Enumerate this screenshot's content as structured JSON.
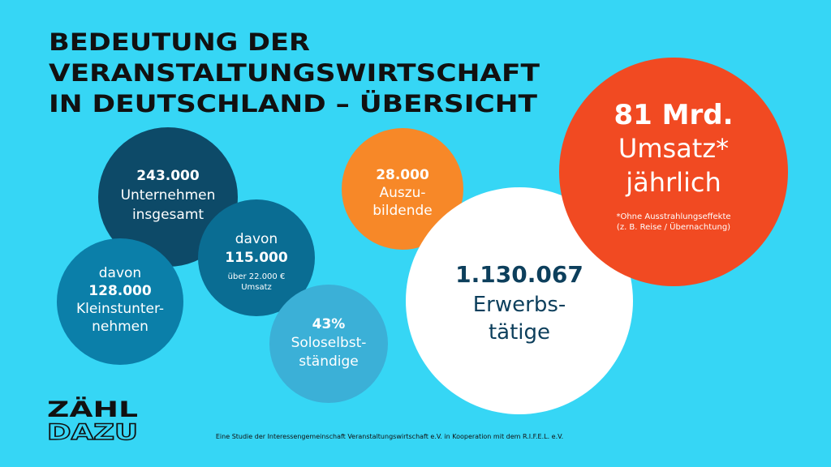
{
  "header": {
    "title": [
      "BEDEUTUNG DER",
      "VERANSTALTUNGSWIRTSCHAFT",
      "IN DEUTSCHLAND – ÜBERSICHT"
    ]
  },
  "bubbles": [
    {
      "lines": [
        "243.000",
        "Unternehmen",
        "insgesamt"
      ]
    },
    {
      "lines": [
        "davon",
        "128.000",
        "Kleinstunter-",
        "nehmen"
      ]
    },
    {
      "lines": [
        "davon",
        "115.000",
        "über 22.000 €",
        "Umsatz"
      ]
    },
    {
      "lines": [
        "43%",
        "Soloselbst-",
        "ständige"
      ]
    },
    {
      "lines": [
        "28.000",
        "Auszu-",
        "bildende"
      ]
    },
    {
      "lines": [
        "1.130.067",
        "Erwerbs-",
        "tätige"
      ]
    },
    {
      "lines": [
        "81 Mrd.",
        "Umsatz*",
        "jährlich"
      ],
      "note": [
        "*Ohne Ausstrahlungseffekte",
        "(z. B. Reise / Übernachtung)"
      ]
    }
  ],
  "logo": {
    "line1": "ZÄHL",
    "line2": "DAZU"
  },
  "footer": "Eine Studie der Interessengemeinschaft Veranstaltungswirtschaft e.V. in Kooperation mit dem R.I.F.E.L. e.V."
}
